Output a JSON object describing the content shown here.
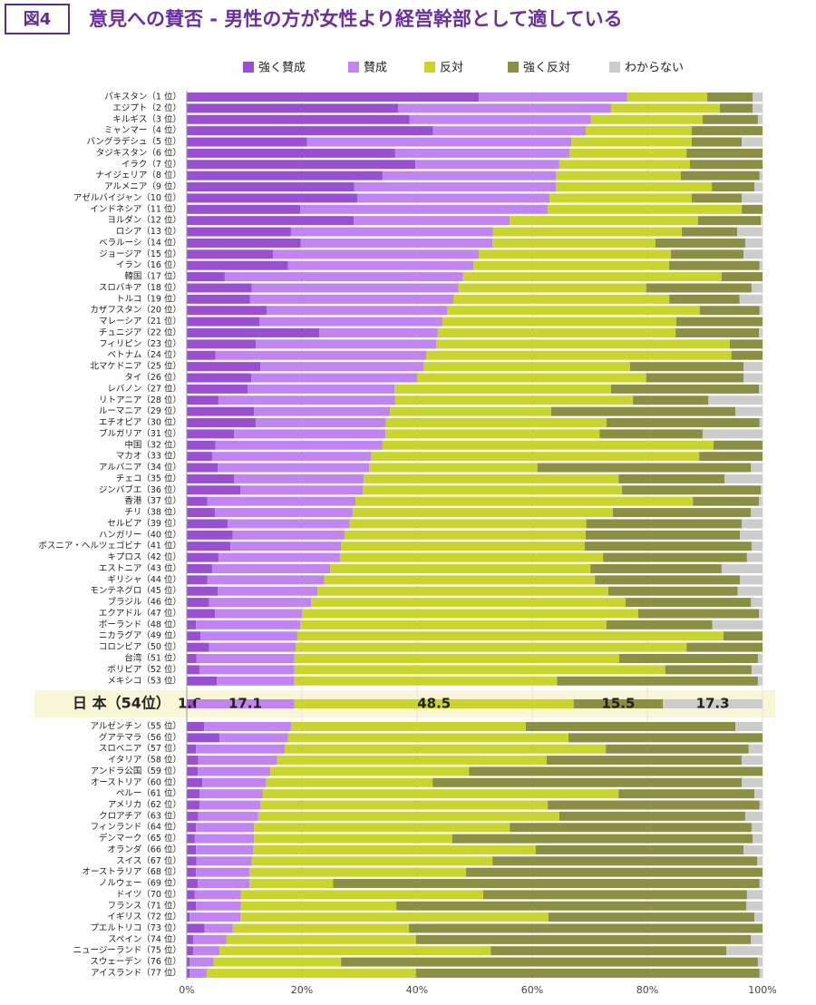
{
  "chart_data": {
    "type": "stacked_barh",
    "figure_label": "図4",
    "title": "意見への賛否 - 男性の方が女性より経営幹部として適している",
    "categories": [
      "パキスタン（1 位）",
      "エジプト（2 位）",
      "キルギス（3 位）",
      "ミャンマー（4 位）",
      "バングラデシュ（5 位）",
      "タジキスタン（6 位）",
      "イラク（7 位）",
      "ナイジェリア（8 位）",
      "アルメニア（9 位）",
      "アゼルバイジャン（10 位）",
      "インドネシア（11 位）",
      "ヨルダン（12 位）",
      "ロシア（13 位）",
      "ベラルーシ（14 位）",
      "ジョージア（15 位）",
      "イラン（16 位）",
      "韓国（17 位）",
      "スロバキア（18 位）",
      "トルコ（19 位）",
      "カザフスタン（20 位）",
      "マレーシア（21 位）",
      "チュニジア（22 位）",
      "フィリピン（23 位）",
      "ベトナム（24 位）",
      "北マケドニア（25 位）",
      "タイ（26 位）",
      "レバノン（27 位）",
      "リトアニア（28 位）",
      "ルーマニア（29 位）",
      "エチオピア（30 位）",
      "ブルガリア（31 位）",
      "中国（32 位）",
      "マカオ（33 位）",
      "アルバニア（34 位）",
      "チェコ（35 位）",
      "ジンバブエ（36 位）",
      "香港（37 位）",
      "チリ（38 位）",
      "セルビア（39 位）",
      "ハンガリー（40 位）",
      "ボスニア・ヘルツェゴビナ（41 位）",
      "キプロス（42 位）",
      "エストニア（43 位）",
      "ギリシャ（44 位）",
      "モンテネグロ（45 位）",
      "ブラジル（46 位）",
      "エクアドル（47 位）",
      "ポーランド（48 位）",
      "ニカラグア（49 位）",
      "コロンビア（50 位）",
      "台湾（51 位）",
      "ボリビア（52 位）",
      "メキシコ（53 位）",
      "日 本（54位）",
      "アルゼンチン（55 位）",
      "グアテマラ（56 位）",
      "スロベニア（57 位）",
      "イタリア（58 位）",
      "アンドラ公国（59 位）",
      "オーストリア（60 位）",
      "ペルー（61 位）",
      "アメリカ（62 位）",
      "クロアチア（63 位）",
      "フィンランド（64 位）",
      "デンマーク（65 位）",
      "オランダ（66 位）",
      "スイス（67 位）",
      "オーストラリア（68 位）",
      "ノルウェー（69 位）",
      "ドイツ（70 位）",
      "フランス（71 位）",
      "イギリス（72 位）",
      "プエルトリコ（73 位）",
      "スペイン（74 位）",
      "ニュージーランド（75 位）",
      "スウェーデン（76 位）",
      "アイスランド（77 位）"
    ],
    "series": [
      {
        "name": "強く賛成",
        "color": "#9a4fd2",
        "values": [
          50.7,
          36.7,
          38.7,
          42.8,
          20.9,
          36.2,
          39.7,
          34.0,
          29.1,
          29.6,
          19.7,
          29.0,
          18.1,
          19.8,
          15.0,
          17.6,
          6.6,
          11.3,
          11.0,
          13.9,
          12.6,
          23.0,
          12.0,
          5.0,
          12.8,
          11.2,
          10.6,
          5.5,
          11.7,
          12.0,
          8.2,
          5.0,
          4.4,
          5.4,
          8.2,
          9.3,
          3.6,
          4.9,
          7.1,
          8.0,
          7.6,
          5.5,
          4.4,
          3.6,
          5.4,
          3.9,
          4.9,
          1.6,
          2.4,
          3.9,
          1.7,
          2.2,
          5.2,
          1.6,
          3.0,
          5.7,
          1.6,
          2.0,
          1.9,
          2.7,
          2.2,
          2.2,
          2.0,
          1.6,
          1.4,
          1.6,
          1.7,
          1.6,
          1.9,
          1.4,
          1.6,
          0.5,
          3.1,
          1.1,
          1.1,
          0.5,
          0.5
        ]
      },
      {
        "name": "賛成",
        "color": "#c184f2",
        "values": [
          25.8,
          37.0,
          31.5,
          26.5,
          45.9,
          30.3,
          25.0,
          30.1,
          35.0,
          33.4,
          43.0,
          27.1,
          35.1,
          33.3,
          35.7,
          32.2,
          41.4,
          35.9,
          35.3,
          31.3,
          31.8,
          20.6,
          31.3,
          36.6,
          28.3,
          28.8,
          25.5,
          30.7,
          23.6,
          22.6,
          26.3,
          29.0,
          27.6,
          26.3,
          22.5,
          21.3,
          25.7,
          23.9,
          21.2,
          19.4,
          19.2,
          21.1,
          20.5,
          20.3,
          17.3,
          17.7,
          15.1,
          18.1,
          16.8,
          15.0,
          17.0,
          16.5,
          13.5,
          17.1,
          15.1,
          11.9,
          15.4,
          13.7,
          12.6,
          11.0,
          11.0,
          10.6,
          10.4,
          10.1,
          10.3,
          9.9,
          9.6,
          9.3,
          9.0,
          8.0,
          7.8,
          8.8,
          4.9,
          5.8,
          4.6,
          4.2,
          3.0
        ]
      },
      {
        "name": "反対",
        "color": "#c9d52b",
        "values": [
          13.9,
          18.9,
          19.4,
          18.4,
          20.9,
          20.3,
          22.7,
          21.7,
          27.1,
          24.7,
          33.7,
          32.7,
          32.8,
          28.3,
          33.4,
          34.0,
          44.9,
          32.6,
          37.5,
          43.9,
          40.6,
          41.3,
          51.0,
          53.0,
          35.9,
          39.8,
          37.6,
          41.3,
          28.0,
          38.3,
          37.2,
          57.5,
          57.0,
          29.2,
          44.3,
          45.0,
          58.6,
          45.2,
          41.1,
          41.9,
          42.3,
          45.7,
          45.2,
          47.0,
          50.5,
          54.6,
          58.4,
          53.2,
          74.0,
          67.9,
          56.4,
          64.4,
          45.6,
          48.5,
          40.8,
          48.7,
          55.8,
          46.8,
          34.5,
          29.0,
          61.8,
          49.9,
          52.3,
          44.4,
          34.4,
          49.1,
          41.8,
          37.6,
          14.5,
          42.1,
          27.0,
          53.5,
          30.6,
          32.9,
          47.1,
          22.1,
          36.3
        ]
      },
      {
        "name": "強く反対",
        "color": "#8a8f42",
        "values": [
          7.9,
          5.7,
          9.6,
          12.3,
          8.7,
          13.2,
          12.6,
          13.7,
          7.4,
          8.7,
          3.6,
          10.9,
          9.6,
          15.6,
          12.6,
          15.7,
          7.1,
          18.3,
          12.2,
          10.4,
          15.0,
          14.5,
          5.7,
          5.4,
          19.7,
          16.9,
          25.7,
          13.1,
          32.0,
          26.6,
          17.9,
          8.5,
          11.0,
          37.1,
          18.4,
          24.1,
          11.5,
          24.0,
          27.0,
          26.8,
          29.0,
          25.0,
          22.8,
          25.2,
          22.5,
          21.8,
          21.0,
          18.4,
          6.8,
          13.2,
          24.1,
          15.0,
          34.9,
          15.5,
          36.4,
          33.7,
          24.8,
          33.9,
          51.0,
          53.7,
          23.6,
          36.8,
          32.3,
          42.0,
          52.2,
          36.1,
          46.0,
          51.5,
          74.1,
          45.8,
          60.8,
          35.8,
          61.4,
          58.2,
          40.9,
          72.4,
          59.7
        ]
      },
      {
        "name": "わからない",
        "color": "#cccccc",
        "values": [
          1.7,
          1.7,
          0.8,
          0,
          3.6,
          0,
          0,
          0.5,
          1.4,
          3.6,
          0,
          0.3,
          4.4,
          3.0,
          3.3,
          0.5,
          0,
          1.9,
          4.0,
          0.5,
          0,
          0.6,
          0,
          0,
          3.3,
          3.3,
          0.6,
          9.4,
          4.7,
          0.5,
          10.4,
          0,
          0,
          2.0,
          6.6,
          0.3,
          0.6,
          2.0,
          3.6,
          3.9,
          1.9,
          2.7,
          7.1,
          3.9,
          4.3,
          2.0,
          0.6,
          8.7,
          0,
          0,
          0.8,
          1.9,
          0.8,
          17.3,
          4.7,
          0,
          2.4,
          3.6,
          0,
          3.6,
          1.4,
          0.5,
          3.0,
          1.9,
          1.7,
          3.3,
          0.9,
          0,
          0.5,
          2.7,
          2.8,
          1.4,
          0,
          2.0,
          6.3,
          0.8,
          0.5
        ]
      }
    ],
    "xlim": [
      0,
      100
    ],
    "xticks": [
      {
        "value": 0,
        "label": "0%"
      },
      {
        "value": 20,
        "label": "20%"
      },
      {
        "value": 40,
        "label": "40%"
      },
      {
        "value": 60,
        "label": "60%"
      },
      {
        "value": 80,
        "label": "80%"
      },
      {
        "value": 100,
        "label": "100%"
      }
    ],
    "grid": true
  }
}
